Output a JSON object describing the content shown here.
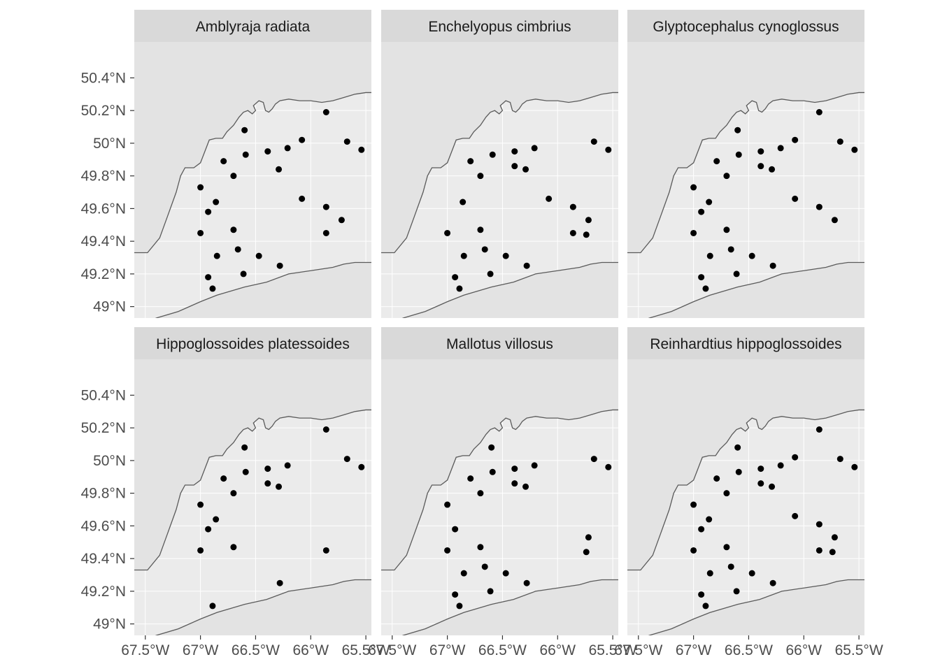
{
  "chart_data": {
    "type": "scatter",
    "facet_layout": "3 columns x 2 rows, shared axes",
    "x_axis": {
      "label": "",
      "range": [
        -67.6,
        -65.45
      ],
      "ticks": [
        -67.5,
        -67.0,
        -66.5,
        -66.0,
        -65.5
      ],
      "tick_labels": [
        "67.5°W",
        "67°W",
        "66.5°W",
        "66°W",
        "65.5°W"
      ]
    },
    "y_axis": {
      "label": "",
      "range": [
        48.93,
        50.62
      ],
      "ticks": [
        49.0,
        49.2,
        49.4,
        49.6,
        49.8,
        50.0,
        50.2,
        50.4
      ],
      "tick_labels": [
        "49°N",
        "49.2°N",
        "49.4°N",
        "49.6°N",
        "49.8°N",
        "50°N",
        "50.2°N",
        "50.4°N"
      ]
    },
    "grid": true,
    "colors": {
      "panel_background": "#ebebeb",
      "land_fill": "#e3e3e3",
      "coastline": "#5a5a5a",
      "gridline": "#ffffff",
      "strip_background": "#d9d9d9",
      "point": "#000000"
    },
    "panels": [
      {
        "title": "Amblyraja radiata",
        "points": [
          [
            -67.0,
            49.73
          ],
          [
            -66.93,
            49.58
          ],
          [
            -66.86,
            49.64
          ],
          [
            -67.0,
            49.45
          ],
          [
            -66.7,
            49.47
          ],
          [
            -66.79,
            49.89
          ],
          [
            -66.7,
            49.8
          ],
          [
            -66.6,
            50.08
          ],
          [
            -66.59,
            49.93
          ],
          [
            -66.39,
            49.95
          ],
          [
            -66.21,
            49.97
          ],
          [
            -66.29,
            49.84
          ],
          [
            -66.08,
            50.02
          ],
          [
            -66.08,
            49.66
          ],
          [
            -65.86,
            50.19
          ],
          [
            -65.67,
            50.01
          ],
          [
            -65.54,
            49.96
          ],
          [
            -65.86,
            49.61
          ],
          [
            -65.86,
            49.45
          ],
          [
            -65.72,
            49.53
          ],
          [
            -66.85,
            49.31
          ],
          [
            -66.66,
            49.35
          ],
          [
            -66.47,
            49.31
          ],
          [
            -66.61,
            49.2
          ],
          [
            -66.28,
            49.25
          ],
          [
            -66.93,
            49.18
          ],
          [
            -66.89,
            49.11
          ]
        ]
      },
      {
        "title": "Enchelyopus cimbrius",
        "points": [
          [
            -67.0,
            49.45
          ],
          [
            -66.86,
            49.64
          ],
          [
            -66.7,
            49.47
          ],
          [
            -66.79,
            49.89
          ],
          [
            -66.7,
            49.8
          ],
          [
            -66.59,
            49.93
          ],
          [
            -66.39,
            49.95
          ],
          [
            -66.39,
            49.86
          ],
          [
            -66.29,
            49.84
          ],
          [
            -66.21,
            49.97
          ],
          [
            -66.08,
            49.66
          ],
          [
            -65.67,
            50.01
          ],
          [
            -65.54,
            49.96
          ],
          [
            -65.86,
            49.61
          ],
          [
            -65.86,
            49.45
          ],
          [
            -65.72,
            49.53
          ],
          [
            -65.74,
            49.44
          ],
          [
            -66.85,
            49.31
          ],
          [
            -66.66,
            49.35
          ],
          [
            -66.47,
            49.31
          ],
          [
            -66.61,
            49.2
          ],
          [
            -66.28,
            49.25
          ],
          [
            -66.93,
            49.18
          ],
          [
            -66.89,
            49.11
          ]
        ]
      },
      {
        "title": "Glyptocephalus cynoglossus",
        "points": [
          [
            -67.0,
            49.73
          ],
          [
            -66.93,
            49.58
          ],
          [
            -66.86,
            49.64
          ],
          [
            -67.0,
            49.45
          ],
          [
            -66.7,
            49.47
          ],
          [
            -66.79,
            49.89
          ],
          [
            -66.7,
            49.8
          ],
          [
            -66.6,
            50.08
          ],
          [
            -66.59,
            49.93
          ],
          [
            -66.39,
            49.95
          ],
          [
            -66.39,
            49.86
          ],
          [
            -66.29,
            49.84
          ],
          [
            -66.21,
            49.97
          ],
          [
            -66.08,
            50.02
          ],
          [
            -66.08,
            49.66
          ],
          [
            -65.86,
            50.19
          ],
          [
            -65.67,
            50.01
          ],
          [
            -65.54,
            49.96
          ],
          [
            -65.86,
            49.61
          ],
          [
            -65.72,
            49.53
          ],
          [
            -66.85,
            49.31
          ],
          [
            -66.66,
            49.35
          ],
          [
            -66.47,
            49.31
          ],
          [
            -66.61,
            49.2
          ],
          [
            -66.28,
            49.25
          ],
          [
            -66.93,
            49.18
          ],
          [
            -66.89,
            49.11
          ]
        ]
      },
      {
        "title": "Hippoglossoides platessoides",
        "points": [
          [
            -67.0,
            49.73
          ],
          [
            -66.93,
            49.58
          ],
          [
            -66.86,
            49.64
          ],
          [
            -67.0,
            49.45
          ],
          [
            -66.7,
            49.47
          ],
          [
            -66.79,
            49.89
          ],
          [
            -66.7,
            49.8
          ],
          [
            -66.6,
            50.08
          ],
          [
            -66.59,
            49.93
          ],
          [
            -66.39,
            49.95
          ],
          [
            -66.39,
            49.86
          ],
          [
            -66.29,
            49.84
          ],
          [
            -66.21,
            49.97
          ],
          [
            -65.86,
            50.19
          ],
          [
            -65.67,
            50.01
          ],
          [
            -65.54,
            49.96
          ],
          [
            -65.86,
            49.45
          ],
          [
            -66.28,
            49.25
          ],
          [
            -66.89,
            49.11
          ]
        ]
      },
      {
        "title": "Mallotus villosus",
        "points": [
          [
            -67.0,
            49.73
          ],
          [
            -66.93,
            49.58
          ],
          [
            -67.0,
            49.45
          ],
          [
            -66.7,
            49.47
          ],
          [
            -66.79,
            49.89
          ],
          [
            -66.7,
            49.8
          ],
          [
            -66.6,
            50.08
          ],
          [
            -66.59,
            49.93
          ],
          [
            -66.39,
            49.95
          ],
          [
            -66.39,
            49.86
          ],
          [
            -66.29,
            49.84
          ],
          [
            -66.21,
            49.97
          ],
          [
            -65.67,
            50.01
          ],
          [
            -65.54,
            49.96
          ],
          [
            -65.72,
            49.53
          ],
          [
            -65.74,
            49.44
          ],
          [
            -66.85,
            49.31
          ],
          [
            -66.66,
            49.35
          ],
          [
            -66.47,
            49.31
          ],
          [
            -66.61,
            49.2
          ],
          [
            -66.28,
            49.25
          ],
          [
            -66.93,
            49.18
          ],
          [
            -66.89,
            49.11
          ]
        ]
      },
      {
        "title": "Reinhardtius hippoglossoides",
        "points": [
          [
            -67.0,
            49.73
          ],
          [
            -66.93,
            49.58
          ],
          [
            -66.86,
            49.64
          ],
          [
            -67.0,
            49.45
          ],
          [
            -66.7,
            49.47
          ],
          [
            -66.79,
            49.89
          ],
          [
            -66.7,
            49.8
          ],
          [
            -66.6,
            50.08
          ],
          [
            -66.59,
            49.93
          ],
          [
            -66.39,
            49.95
          ],
          [
            -66.39,
            49.86
          ],
          [
            -66.29,
            49.84
          ],
          [
            -66.21,
            49.97
          ],
          [
            -66.08,
            50.02
          ],
          [
            -66.08,
            49.66
          ],
          [
            -65.86,
            50.19
          ],
          [
            -65.67,
            50.01
          ],
          [
            -65.54,
            49.96
          ],
          [
            -65.86,
            49.61
          ],
          [
            -65.86,
            49.45
          ],
          [
            -65.72,
            49.53
          ],
          [
            -65.74,
            49.44
          ],
          [
            -66.85,
            49.31
          ],
          [
            -66.66,
            49.35
          ],
          [
            -66.47,
            49.31
          ],
          [
            -66.61,
            49.2
          ],
          [
            -66.28,
            49.25
          ],
          [
            -66.93,
            49.18
          ],
          [
            -66.89,
            49.11
          ]
        ]
      }
    ],
    "north_coastline": [
      [
        -67.6,
        49.33
      ],
      [
        -67.48,
        49.33
      ],
      [
        -67.37,
        49.42
      ],
      [
        -67.3,
        49.55
      ],
      [
        -67.22,
        49.7
      ],
      [
        -67.18,
        49.8
      ],
      [
        -67.14,
        49.85
      ],
      [
        -67.06,
        49.85
      ],
      [
        -67.0,
        49.88
      ],
      [
        -66.96,
        49.95
      ],
      [
        -66.92,
        50.02
      ],
      [
        -66.86,
        50.03
      ],
      [
        -66.8,
        50.03
      ],
      [
        -66.76,
        50.07
      ],
      [
        -66.7,
        50.11
      ],
      [
        -66.65,
        50.16
      ],
      [
        -66.61,
        50.19
      ],
      [
        -66.57,
        50.2
      ],
      [
        -66.53,
        50.18
      ],
      [
        -66.5,
        50.2
      ],
      [
        -66.52,
        50.23
      ],
      [
        -66.47,
        50.26
      ],
      [
        -66.43,
        50.25
      ],
      [
        -66.41,
        50.2
      ],
      [
        -66.38,
        50.19
      ],
      [
        -66.35,
        50.21
      ],
      [
        -66.32,
        50.24
      ],
      [
        -66.28,
        50.26
      ],
      [
        -66.2,
        50.27
      ],
      [
        -66.1,
        50.26
      ],
      [
        -66.0,
        50.26
      ],
      [
        -65.9,
        50.25
      ],
      [
        -65.8,
        50.26
      ],
      [
        -65.7,
        50.28
      ],
      [
        -65.6,
        50.3
      ],
      [
        -65.5,
        50.31
      ],
      [
        -65.45,
        50.31
      ]
    ],
    "south_coastline": [
      [
        -67.55,
        48.89
      ],
      [
        -67.4,
        48.93
      ],
      [
        -67.2,
        48.97
      ],
      [
        -67.0,
        49.03
      ],
      [
        -66.85,
        49.07
      ],
      [
        -66.6,
        49.12
      ],
      [
        -66.4,
        49.15
      ],
      [
        -66.2,
        49.2
      ],
      [
        -66.0,
        49.22
      ],
      [
        -65.8,
        49.24
      ],
      [
        -65.7,
        49.26
      ],
      [
        -65.6,
        49.27
      ],
      [
        -65.45,
        49.27
      ]
    ]
  }
}
